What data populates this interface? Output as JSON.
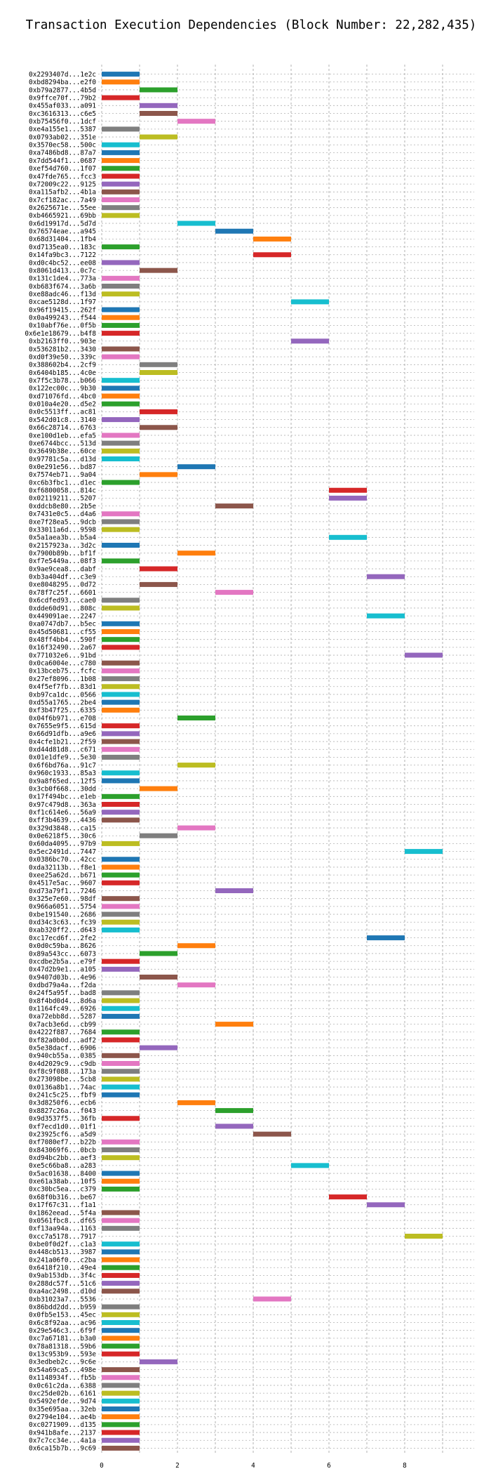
{
  "chart_data": {
    "type": "gantt",
    "title": "Transaction Execution Dependencies (Block Number: 22,282,435)",
    "xlabel": "",
    "ylabel": "",
    "x_ticks": [
      0,
      2,
      4,
      6,
      8
    ],
    "xlim": [
      -0.45,
      9.55
    ],
    "grid": true,
    "palette": [
      "#1f77b4",
      "#ff7f0e",
      "#2ca02c",
      "#d62728",
      "#9467bd",
      "#8c564b",
      "#e377c2",
      "#7f7f7f",
      "#bcbd22",
      "#17becf"
    ],
    "transactions": [
      {
        "label": "0x2293407d...1e2c",
        "start": 0
      },
      {
        "label": "0xbd8294ba...e2f0",
        "start": 0
      },
      {
        "label": "0xb79a2877...4b5d",
        "start": 1
      },
      {
        "label": "0x9ffce70f...79b2",
        "start": 0
      },
      {
        "label": "0x455af033...a091",
        "start": 1
      },
      {
        "label": "0xc3616313...c6e5",
        "start": 1
      },
      {
        "label": "0xb75456f0...1dcf",
        "start": 2
      },
      {
        "label": "0xe4a155e1...5387",
        "start": 0
      },
      {
        "label": "0x0793ab02...351e",
        "start": 1
      },
      {
        "label": "0x3570ec58...500c",
        "start": 0
      },
      {
        "label": "0xa7486bd8...87a7",
        "start": 0
      },
      {
        "label": "0x7dd544f1...0687",
        "start": 0
      },
      {
        "label": "0xef54d760...1f07",
        "start": 0
      },
      {
        "label": "0x47fde765...fcc3",
        "start": 0
      },
      {
        "label": "0x72009c22...9125",
        "start": 0
      },
      {
        "label": "0xa115afb2...4b1a",
        "start": 0
      },
      {
        "label": "0x7cf182ac...7a49",
        "start": 0
      },
      {
        "label": "0x2625671e...55ee",
        "start": 0
      },
      {
        "label": "0xb4665921...69bb",
        "start": 0
      },
      {
        "label": "0x6d19917d...5d7d",
        "start": 2
      },
      {
        "label": "0x76574eae...a945",
        "start": 3
      },
      {
        "label": "0x68d31404...1fb4",
        "start": 4
      },
      {
        "label": "0xd7135ea0...183c",
        "start": 0
      },
      {
        "label": "0x14fa9bc3...7122",
        "start": 4
      },
      {
        "label": "0xd0c4bc52...ee08",
        "start": 0
      },
      {
        "label": "0x8061d413...0c7c",
        "start": 1
      },
      {
        "label": "0x131c1de4...773a",
        "start": 0
      },
      {
        "label": "0xb683f674...3a6b",
        "start": 0
      },
      {
        "label": "0xe88adc46...f13d",
        "start": 0
      },
      {
        "label": "0xcae5128d...1f97",
        "start": 5
      },
      {
        "label": "0x96f19415...262f",
        "start": 0
      },
      {
        "label": "0x0a499243...f544",
        "start": 0
      },
      {
        "label": "0x10abf76e...0f5b",
        "start": 0
      },
      {
        "label": "0x6e1e18679...b4f8",
        "start": 0
      },
      {
        "label": "0xb2163ff0...903e",
        "start": 5
      },
      {
        "label": "0x536281b2...3430",
        "start": 0
      },
      {
        "label": "0xd0f39e50...339c",
        "start": 0
      },
      {
        "label": "0x388602b4...2cf9",
        "start": 1
      },
      {
        "label": "0x6404b185...4c0e",
        "start": 1
      },
      {
        "label": "0x7f5c3b78...b066",
        "start": 0
      },
      {
        "label": "0x122ec00c...9b30",
        "start": 0
      },
      {
        "label": "0xd71076fd...4bc0",
        "start": 0
      },
      {
        "label": "0x010a4e20...d5e2",
        "start": 0
      },
      {
        "label": "0x0c5513ff...ac81",
        "start": 1
      },
      {
        "label": "0x542d01c8...3140",
        "start": 0
      },
      {
        "label": "0x66c28714...6763",
        "start": 1
      },
      {
        "label": "0xe100d1eb...efa5",
        "start": 0
      },
      {
        "label": "0xe6744bcc...513d",
        "start": 0
      },
      {
        "label": "0x3649b38e...60ce",
        "start": 0
      },
      {
        "label": "0x97781c5a...d13d",
        "start": 0
      },
      {
        "label": "0x0e291e56...bd87",
        "start": 2
      },
      {
        "label": "0x7574eb71...9a04",
        "start": 1
      },
      {
        "label": "0xc6b3fbc1...d1ec",
        "start": 0
      },
      {
        "label": "0xf6800058...814c",
        "start": 6
      },
      {
        "label": "0x02119211...5207",
        "start": 6
      },
      {
        "label": "0xddcb8e80...2b5e",
        "start": 3
      },
      {
        "label": "0x7431e0c5...d4a6",
        "start": 0
      },
      {
        "label": "0xe7f28ea5...9dcb",
        "start": 0
      },
      {
        "label": "0x33011a6d...9598",
        "start": 0
      },
      {
        "label": "0x5a1aea3b...b5a4",
        "start": 6
      },
      {
        "label": "0x2157923a...3d2c",
        "start": 0
      },
      {
        "label": "0x7900b89b...bf1f",
        "start": 2
      },
      {
        "label": "0xf7e5449a...08f3",
        "start": 0
      },
      {
        "label": "0x9ae9cea8...dabf",
        "start": 1
      },
      {
        "label": "0xb3a404df...c3e9",
        "start": 7
      },
      {
        "label": "0xe8048295...0d72",
        "start": 1
      },
      {
        "label": "0x78f7c25f...6601",
        "start": 3
      },
      {
        "label": "0x6cdfed93...cae0",
        "start": 0
      },
      {
        "label": "0xdde60d91...808c",
        "start": 0
      },
      {
        "label": "0x449091ae...2247",
        "start": 7
      },
      {
        "label": "0xa0747db7...b5ec",
        "start": 0
      },
      {
        "label": "0x45d50681...cf55",
        "start": 0
      },
      {
        "label": "0x48ff4bb4...590f",
        "start": 0
      },
      {
        "label": "0x16f32490...2a67",
        "start": 0
      },
      {
        "label": "0x771032e6...91bd",
        "start": 8
      },
      {
        "label": "0x0ca6004e...c780",
        "start": 0
      },
      {
        "label": "0x13bceb75...fcfc",
        "start": 0
      },
      {
        "label": "0x27ef8096...1b08",
        "start": 0
      },
      {
        "label": "0x4f5ef7fb...83d1",
        "start": 0
      },
      {
        "label": "0xb97ca1dc...0566",
        "start": 0
      },
      {
        "label": "0xd55a1765...2be4",
        "start": 0
      },
      {
        "label": "0xf3b47f25...6335",
        "start": 0
      },
      {
        "label": "0x04f6b971...e708",
        "start": 2
      },
      {
        "label": "0x7655e9f5...615d",
        "start": 0
      },
      {
        "label": "0x66d91dfb...a9e6",
        "start": 0
      },
      {
        "label": "0x4cfe1b21...2f59",
        "start": 0
      },
      {
        "label": "0xd44d81d8...c671",
        "start": 0
      },
      {
        "label": "0x01e1dfe9...5e30",
        "start": 0
      },
      {
        "label": "0x6f6bd76a...91c7",
        "start": 2
      },
      {
        "label": "0x960c1933...85a3",
        "start": 0
      },
      {
        "label": "0x9a8f65ed...12f5",
        "start": 0
      },
      {
        "label": "0x3cb0f668...30dd",
        "start": 1
      },
      {
        "label": "0x17f494bc...e1eb",
        "start": 0
      },
      {
        "label": "0x97c479d8...363a",
        "start": 0
      },
      {
        "label": "0xf1c614e6...56a9",
        "start": 0
      },
      {
        "label": "0xff3b4639...4436",
        "start": 0
      },
      {
        "label": "0x329d3848...ca15",
        "start": 2
      },
      {
        "label": "0x0e6218f5...30c6",
        "start": 1
      },
      {
        "label": "0x60da4095...97b9",
        "start": 0
      },
      {
        "label": "0x5ec2491d...7447",
        "start": 8
      },
      {
        "label": "0x0386bc70...42cc",
        "start": 0
      },
      {
        "label": "0xda32113b...f8e1",
        "start": 0
      },
      {
        "label": "0xee25a62d...b671",
        "start": 0
      },
      {
        "label": "0x4517e5ac...9607",
        "start": 0
      },
      {
        "label": "0xd73a79f1...7246",
        "start": 3
      },
      {
        "label": "0x325e7e60...98df",
        "start": 0
      },
      {
        "label": "0x966a6051...5754",
        "start": 0
      },
      {
        "label": "0xbe191540...2686",
        "start": 0
      },
      {
        "label": "0xd34c3c63...fc39",
        "start": 0
      },
      {
        "label": "0xab320ff2...d643",
        "start": 0
      },
      {
        "label": "0xc17ecd6f...2fe2",
        "start": 7
      },
      {
        "label": "0x0d0c59ba...8626",
        "start": 2
      },
      {
        "label": "0x89a543cc...6073",
        "start": 1
      },
      {
        "label": "0xcdbe2b5a...e79f",
        "start": 0
      },
      {
        "label": "0x47d2b9e1...a105",
        "start": 0
      },
      {
        "label": "0x9407d03b...4e96",
        "start": 1
      },
      {
        "label": "0xdbd79a4a...f2da",
        "start": 2
      },
      {
        "label": "0x24f5a95f...bad8",
        "start": 0
      },
      {
        "label": "0x8f4bd0d4...8d6a",
        "start": 0
      },
      {
        "label": "0x1164fc49...6926",
        "start": 0
      },
      {
        "label": "0xa72ebb8d...5287",
        "start": 0
      },
      {
        "label": "0x7acb3e6d...cb99",
        "start": 3
      },
      {
        "label": "0x4222f887...7684",
        "start": 0
      },
      {
        "label": "0xf82a0b0d...adf2",
        "start": 0
      },
      {
        "label": "0x5e38dacf...6906",
        "start": 1
      },
      {
        "label": "0x940cb55a...0385",
        "start": 0
      },
      {
        "label": "0x4d2029c9...c9db",
        "start": 0
      },
      {
        "label": "0xf8c9f088...173a",
        "start": 0
      },
      {
        "label": "0x273098be...5cb8",
        "start": 0
      },
      {
        "label": "0x0136a8b1...74ac",
        "start": 0
      },
      {
        "label": "0x241c5c25...fbf9",
        "start": 0
      },
      {
        "label": "0x3d8250f6...ecb6",
        "start": 2
      },
      {
        "label": "0x8827c26a...f043",
        "start": 3
      },
      {
        "label": "0x9d3537f5...36fb",
        "start": 0
      },
      {
        "label": "0xf7ecd1d0...01f1",
        "start": 3
      },
      {
        "label": "0x23925cf6...a5d9",
        "start": 4
      },
      {
        "label": "0xf7080ef7...b22b",
        "start": 0
      },
      {
        "label": "0x843069f6...0bcb",
        "start": 0
      },
      {
        "label": "0xd94bc2bb...aef3",
        "start": 0
      },
      {
        "label": "0xe5c66ba8...a283",
        "start": 5
      },
      {
        "label": "0x5ac01638...8400",
        "start": 0
      },
      {
        "label": "0xe61a38ab...10f5",
        "start": 0
      },
      {
        "label": "0xc30bc5ea...c379",
        "start": 0
      },
      {
        "label": "0x68f0b316...be67",
        "start": 6
      },
      {
        "label": "0x17f67c31...f1a1",
        "start": 7
      },
      {
        "label": "0x1862eead...5f4a",
        "start": 0
      },
      {
        "label": "0x0561fbc8...df65",
        "start": 0
      },
      {
        "label": "0xf13aa94a...1163",
        "start": 0
      },
      {
        "label": "0xcc7a5178...7917",
        "start": 8
      },
      {
        "label": "0xbe0f0d2f...c1a3",
        "start": 0
      },
      {
        "label": "0x448cb513...3987",
        "start": 0
      },
      {
        "label": "0x241a06f0...c2ba",
        "start": 0
      },
      {
        "label": "0x6418f210...49e4",
        "start": 0
      },
      {
        "label": "0x9ab153db...3f4c",
        "start": 0
      },
      {
        "label": "0x288dc57f...51c6",
        "start": 0
      },
      {
        "label": "0xa4ac2498...d10d",
        "start": 0
      },
      {
        "label": "0xb31023a7...5536",
        "start": 4
      },
      {
        "label": "0x86bdd2dd...b959",
        "start": 0
      },
      {
        "label": "0x0fb5e153...45ec",
        "start": 0
      },
      {
        "label": "0x6c8f92aa...ac96",
        "start": 0
      },
      {
        "label": "0x29e546c3...6f9f",
        "start": 0
      },
      {
        "label": "0xc7a67181...b3a0",
        "start": 0
      },
      {
        "label": "0x78a81318...59b6",
        "start": 0
      },
      {
        "label": "0x13c953b9...593e",
        "start": 0
      },
      {
        "label": "0x3edbeb2c...9c6e",
        "start": 1
      },
      {
        "label": "0x54a69ca5...498e",
        "start": 0
      },
      {
        "label": "0x1148934f...fb5b",
        "start": 0
      },
      {
        "label": "0x0c61c2da...6388",
        "start": 0
      },
      {
        "label": "0xc25de02b...6161",
        "start": 0
      },
      {
        "label": "0x5492efde...9d74",
        "start": 0
      },
      {
        "label": "0x35e695aa...32eb",
        "start": 0
      },
      {
        "label": "0x2794e104...ae4b",
        "start": 0
      },
      {
        "label": "0xc0271909...d135",
        "start": 0
      },
      {
        "label": "0x941b8afe...2137",
        "start": 0
      },
      {
        "label": "0x7c7cc34e...4a1a",
        "start": 0
      },
      {
        "label": "0x6ca15b7b...9c69",
        "start": 0
      }
    ]
  }
}
